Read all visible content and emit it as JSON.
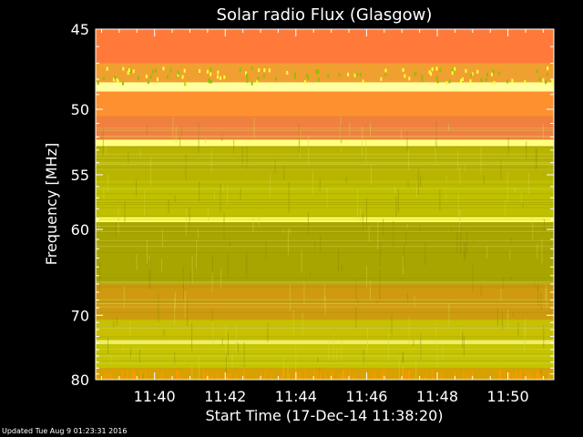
{
  "footer": {
    "updated_text": "Updated Tue Aug  9 01:23:31 2016"
  },
  "chart_data": {
    "type": "heatmap",
    "title": "Solar radio Flux (Glasgow)",
    "xlabel": "Start Time (17-Dec-14 11:38:20)",
    "ylabel": "Frequency [MHz]",
    "x_ticks": [
      {
        "label": "11:40",
        "minutes": 40
      },
      {
        "label": "11:42",
        "minutes": 42
      },
      {
        "label": "11:44",
        "minutes": 44
      },
      {
        "label": "11:46",
        "minutes": 46
      },
      {
        "label": "11:48",
        "minutes": 48
      },
      {
        "label": "11:50",
        "minutes": 50
      }
    ],
    "xlim_minutes": [
      38.333,
      51.3
    ],
    "y_scale": "reciprocal",
    "y_ticks": [
      {
        "label": "45",
        "mhz": 45
      },
      {
        "label": "50",
        "mhz": 50
      },
      {
        "label": "55",
        "mhz": 55
      },
      {
        "label": "60",
        "mhz": 60
      },
      {
        "label": "70",
        "mhz": 70
      },
      {
        "label": "80",
        "mhz": 80
      }
    ],
    "ylim_mhz": [
      45,
      80
    ],
    "colors": {
      "low": "#9a9a00",
      "mid": "#c8c800",
      "high": "#ff9030",
      "peak": "#ffff80"
    },
    "intensity_bands": [
      {
        "from_mhz": 45.0,
        "to_mhz": 47.0,
        "color": "#ff7a3a"
      },
      {
        "from_mhz": 47.0,
        "to_mhz": 48.2,
        "color": "#f0a030"
      },
      {
        "from_mhz": 48.2,
        "to_mhz": 48.8,
        "color": "#ffffa0"
      },
      {
        "from_mhz": 48.8,
        "to_mhz": 50.5,
        "color": "#ff9030"
      },
      {
        "from_mhz": 50.5,
        "to_mhz": 52.2,
        "color": "#f08040"
      },
      {
        "from_mhz": 52.2,
        "to_mhz": 52.7,
        "color": "#ffff80"
      },
      {
        "from_mhz": 52.7,
        "to_mhz": 55.5,
        "color": "#b8b400"
      },
      {
        "from_mhz": 55.5,
        "to_mhz": 58.8,
        "color": "#c0c000"
      },
      {
        "from_mhz": 58.8,
        "to_mhz": 59.3,
        "color": "#ffff60"
      },
      {
        "from_mhz": 59.3,
        "to_mhz": 66.0,
        "color": "#a8a400"
      },
      {
        "from_mhz": 66.0,
        "to_mhz": 70.5,
        "color": "#d09a10"
      },
      {
        "from_mhz": 70.5,
        "to_mhz": 73.5,
        "color": "#c8c000"
      },
      {
        "from_mhz": 73.5,
        "to_mhz": 74.2,
        "color": "#eeee60"
      },
      {
        "from_mhz": 74.2,
        "to_mhz": 78.0,
        "color": "#c4c400"
      },
      {
        "from_mhz": 78.0,
        "to_mhz": 80.0,
        "color": "#d8a000"
      }
    ]
  }
}
